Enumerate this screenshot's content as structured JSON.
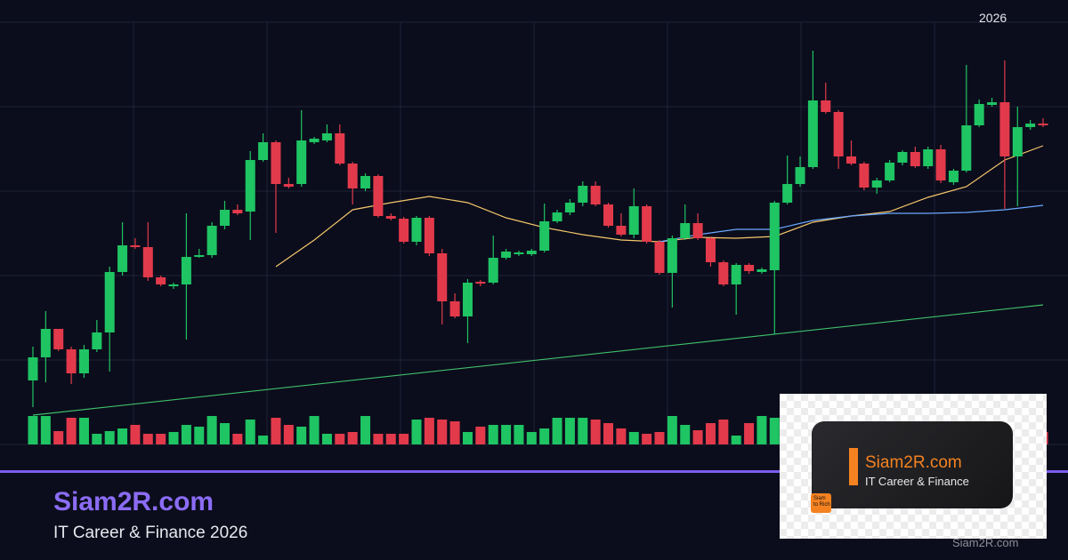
{
  "chart_data": {
    "type": "candlestick",
    "period_label": "2026",
    "up_color": "#1fc463",
    "down_color": "#e23a4b",
    "grid": true,
    "xlim": [
      -0.5,
      79.5
    ],
    "ylim": [
      0,
      475
    ],
    "open": [
      72,
      98,
      130,
      107,
      80,
      107,
      126,
      194,
      224,
      222,
      188,
      178,
      180,
      211,
      213,
      246,
      264,
      262,
      320,
      340,
      293,
      293,
      340,
      342,
      350,
      316,
      288,
      302,
      257,
      254,
      228,
      255,
      215,
      161,
      144,
      183,
      182,
      210,
      214,
      214,
      218,
      251,
      261,
      272,
      291,
      270,
      246,
      236,
      268,
      228,
      193,
      232,
      249,
      232,
      205,
      180,
      202,
      194,
      196,
      272,
      293,
      312,
      387,
      374,
      324,
      316,
      289,
      297,
      317,
      329,
      313,
      332,
      295,
      308,
      359,
      382,
      385,
      324,
      357,
      361
    ],
    "close": [
      98,
      130,
      107,
      80,
      107,
      126,
      194,
      224,
      222,
      188,
      180,
      180,
      211,
      213,
      246,
      264,
      260,
      320,
      340,
      293,
      290,
      342,
      344,
      350,
      316,
      288,
      302,
      257,
      254,
      228,
      255,
      215,
      161,
      144,
      182,
      181,
      210,
      217,
      216,
      218,
      251,
      261,
      272,
      291,
      270,
      246,
      236,
      268,
      228,
      193,
      232,
      249,
      232,
      205,
      180,
      202,
      195,
      197,
      272,
      293,
      312,
      387,
      374,
      324,
      316,
      289,
      297,
      317,
      329,
      313,
      332,
      297,
      308,
      359,
      383,
      385,
      324,
      357,
      361,
      359
    ],
    "high": [
      110,
      150,
      130,
      110,
      112,
      140,
      200,
      250,
      232,
      250,
      190,
      182,
      260,
      220,
      250,
      274,
      270,
      330,
      350,
      342,
      300,
      376,
      346,
      360,
      360,
      318,
      305,
      304,
      260,
      256,
      257,
      257,
      220,
      170,
      186,
      185,
      235,
      220,
      218,
      220,
      271,
      264,
      276,
      296,
      296,
      272,
      260,
      288,
      270,
      230,
      235,
      270,
      260,
      234,
      207,
      204,
      204,
      199,
      274,
      325,
      324,
      443,
      407,
      376,
      342,
      318,
      300,
      320,
      331,
      335,
      335,
      337,
      310,
      427,
      388,
      390,
      432,
      380,
      365,
      367
    ],
    "low": [
      42,
      70,
      105,
      68,
      75,
      104,
      82,
      190,
      220,
      184,
      178,
      175,
      118,
      210,
      210,
      242,
      258,
      230,
      318,
      238,
      288,
      290,
      338,
      340,
      314,
      270,
      285,
      255,
      252,
      226,
      224,
      212,
      135,
      142,
      114,
      178,
      180,
      208,
      212,
      212,
      216,
      249,
      258,
      268,
      268,
      244,
      234,
      232,
      226,
      191,
      154,
      230,
      230,
      200,
      178,
      146,
      192,
      192,
      124,
      270,
      290,
      310,
      372,
      310,
      314,
      286,
      282,
      295,
      314,
      311,
      310,
      294,
      292,
      306,
      357,
      380,
      265,
      268,
      354,
      357
    ],
    "volume": [
      32,
      32,
      15,
      30,
      30,
      12,
      15,
      18,
      22,
      12,
      12,
      14,
      22,
      20,
      32,
      24,
      12,
      28,
      10,
      30,
      22,
      20,
      32,
      12,
      12,
      14,
      32,
      12,
      12,
      12,
      28,
      30,
      28,
      26,
      14,
      20,
      22,
      22,
      22,
      14,
      18,
      30,
      30,
      30,
      28,
      24,
      18,
      14,
      12,
      14,
      32,
      22,
      16,
      24,
      28,
      10,
      24,
      32,
      30,
      24,
      20,
      28,
      22,
      18,
      26,
      14,
      20,
      24,
      16,
      22,
      18,
      26,
      30,
      20,
      24,
      28,
      16,
      22,
      12,
      14
    ],
    "lines": [
      {
        "color": "#f5c66b",
        "x": [
          19,
          22,
          25,
          28,
          31,
          34,
          37,
          40,
          43,
          46,
          49,
          52,
          55,
          58,
          61,
          64,
          67,
          70,
          73,
          76,
          79
        ],
        "values": [
          200,
          230,
          264,
          272,
          279,
          272,
          255,
          244,
          236,
          230,
          228,
          233,
          232,
          234,
          250,
          257,
          262,
          278,
          290,
          320,
          336
        ]
      },
      {
        "color": "#6aa8ff",
        "x": [
          49,
          52,
          55,
          58,
          61,
          64,
          67,
          70,
          73,
          76,
          79
        ],
        "values": [
          228,
          236,
          242,
          242,
          252,
          257,
          260,
          260,
          261,
          264,
          269
        ]
      },
      {
        "color": "#3fbf6a",
        "x": [
          0,
          79
        ],
        "values": [
          33,
          157
        ]
      }
    ]
  },
  "branding": {
    "brand": "Siam2R.com",
    "tagline": "IT Career & Finance 2026"
  },
  "logo": {
    "name": "Siam2R.com",
    "tagline": "IT Career & Finance",
    "icon_text": [
      "Siam",
      "to Rich"
    ]
  },
  "watermark": "Siam2R.com"
}
